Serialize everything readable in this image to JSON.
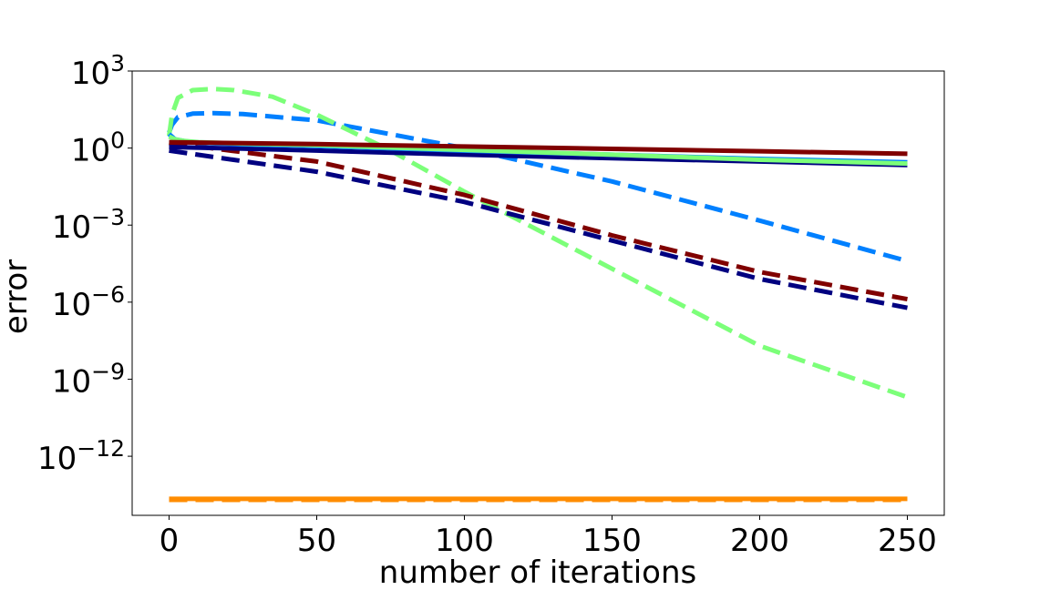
{
  "chart_data": {
    "type": "line",
    "title": "",
    "xlabel": "number of iterations",
    "ylabel": "error",
    "yscale": "log",
    "xlim": [
      -12.5,
      262.5
    ],
    "ylim": [
      5e-15,
      1000
    ],
    "grid": false,
    "legend": "none",
    "x_ticks": [
      {
        "value": 0,
        "label": "0"
      },
      {
        "value": 50,
        "label": "50"
      },
      {
        "value": 100,
        "label": "100"
      },
      {
        "value": 150,
        "label": "150"
      },
      {
        "value": 200,
        "label": "200"
      },
      {
        "value": 250,
        "label": "250"
      }
    ],
    "y_ticks": [
      {
        "value": 1000,
        "base": "10",
        "exp": "3"
      },
      {
        "value": 1,
        "base": "10",
        "exp": "0"
      },
      {
        "value": 0.001,
        "base": "10",
        "exp": "−3"
      },
      {
        "value": 1e-06,
        "base": "10",
        "exp": "−6"
      },
      {
        "value": 1e-09,
        "base": "10",
        "exp": "−9"
      },
      {
        "value": 1e-12,
        "base": "10",
        "exp": "−12"
      }
    ],
    "series": [
      {
        "color": "#ff8c00",
        "style": "dashed",
        "x": [
          0,
          50,
          100,
          150,
          200,
          250
        ],
        "y": [
          2e-14,
          2e-14,
          2e-14,
          2e-14,
          2e-14,
          2e-14
        ]
      },
      {
        "color": "#ff8c00",
        "style": "solid",
        "x": [
          0,
          50,
          100,
          150,
          200,
          250
        ],
        "y": [
          2.2e-14,
          2.2e-14,
          2.2e-14,
          2.2e-14,
          2.2e-14,
          2.2e-14
        ]
      },
      {
        "color": "#0080ff",
        "style": "dashed",
        "x": [
          0,
          1,
          3,
          8,
          15,
          25,
          50,
          100,
          150,
          200,
          250
        ],
        "y": [
          4,
          8,
          16,
          22,
          23,
          21,
          12,
          1,
          0.05,
          0.0015,
          4e-05
        ]
      },
      {
        "color": "#7cff79",
        "style": "dashed",
        "x": [
          0,
          1,
          3,
          8,
          15,
          22,
          35,
          50,
          75,
          100,
          150,
          200,
          250
        ],
        "y": [
          3,
          20,
          90,
          180,
          200,
          180,
          100,
          20,
          0.8,
          0.02,
          2e-05,
          2e-08,
          2e-10
        ]
      },
      {
        "color": "#800000",
        "style": "dashed",
        "x": [
          0,
          50,
          100,
          150,
          200,
          250
        ],
        "y": [
          1.6,
          0.3,
          0.015,
          0.0004,
          1.5e-05,
          1.3e-06
        ]
      },
      {
        "color": "#000080",
        "style": "dashed",
        "x": [
          0,
          50,
          100,
          150,
          200,
          250
        ],
        "y": [
          0.8,
          0.12,
          0.008,
          0.00025,
          8e-06,
          6e-07
        ]
      },
      {
        "color": "#000080",
        "style": "solid",
        "x": [
          0,
          25,
          50,
          100,
          150,
          200,
          250
        ],
        "y": [
          1.1,
          0.95,
          0.8,
          0.55,
          0.4,
          0.3,
          0.22
        ]
      },
      {
        "color": "#0080ff",
        "style": "solid",
        "x": [
          0,
          2,
          5,
          10,
          25,
          50,
          100,
          150,
          200,
          250
        ],
        "y": [
          3.5,
          2.2,
          1.9,
          1.6,
          1.4,
          1.2,
          0.8,
          0.55,
          0.38,
          0.28
        ]
      },
      {
        "color": "#7cff79",
        "style": "solid",
        "x": [
          0,
          2,
          5,
          10,
          25,
          50,
          100,
          150,
          200,
          250
        ],
        "y": [
          2.8,
          2.2,
          1.9,
          1.7,
          1.5,
          1.3,
          0.85,
          0.55,
          0.35,
          0.25
        ]
      },
      {
        "color": "#800000",
        "style": "solid",
        "x": [
          0,
          25,
          50,
          100,
          150,
          200,
          250
        ],
        "y": [
          1.7,
          1.55,
          1.42,
          1.15,
          0.93,
          0.75,
          0.6
        ]
      }
    ]
  }
}
